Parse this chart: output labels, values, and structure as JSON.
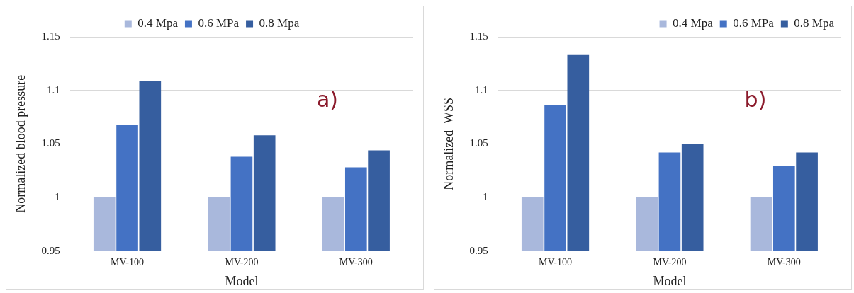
{
  "chart_data": [
    {
      "type": "bar",
      "categories": [
        "MV-100",
        "MV-200",
        "MV-300"
      ],
      "xlabel": "Model",
      "ylabel": "Normalized blood pressure",
      "ylim": [
        0.95,
        1.15
      ],
      "yticks": [
        0.95,
        1,
        1.05,
        1.1,
        1.15
      ],
      "grid": "y",
      "legend": "top",
      "annotations": [
        "a)"
      ],
      "series": [
        {
          "name": "0.4 Mpa",
          "color": "#a9b8dc",
          "values": [
            1,
            1,
            1
          ]
        },
        {
          "name": "0.6 MPa",
          "color": "#4472c4",
          "values": [
            1.068,
            1.038,
            1.028
          ]
        },
        {
          "name": "0.8 Mpa",
          "color": "#365e9f",
          "values": [
            1.109,
            1.058,
            1.044
          ]
        }
      ]
    },
    {
      "type": "bar",
      "categories": [
        "MV-100",
        "MV-200",
        "MV-300"
      ],
      "xlabel": "Model",
      "ylabel": "Normalized  WSS",
      "ylim": [
        0.95,
        1.15
      ],
      "yticks": [
        0.95,
        1,
        1.05,
        1.1,
        1.15
      ],
      "grid": "y",
      "legend": "top right",
      "annotations": [
        "b)"
      ],
      "series": [
        {
          "name": "0.4 Mpa",
          "color": "#a9b8dc",
          "values": [
            1,
            1,
            1
          ]
        },
        {
          "name": "0.6 MPa",
          "color": "#4472c4",
          "values": [
            1.086,
            1.042,
            1.029
          ]
        },
        {
          "name": "0.8 Mpa",
          "color": "#365e9f",
          "values": [
            1.133,
            1.05,
            1.042
          ]
        }
      ]
    }
  ]
}
